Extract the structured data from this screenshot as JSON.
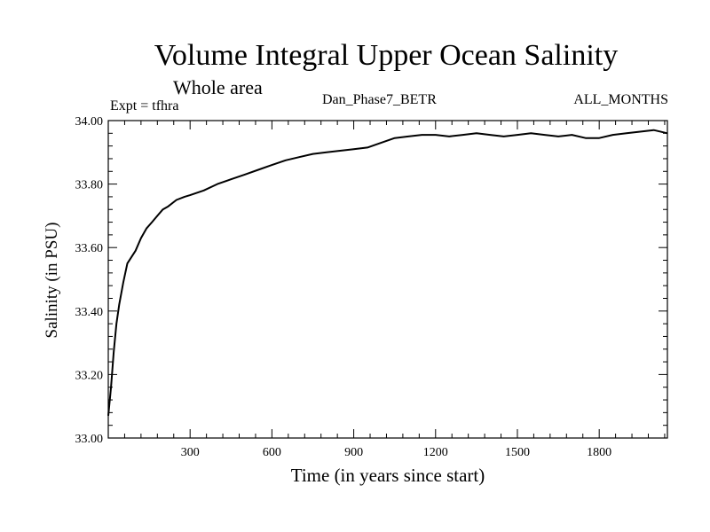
{
  "chart_data": {
    "type": "line",
    "title": "Volume Integral Upper Ocean Salinity",
    "subtitle": "Whole area",
    "left_label": "Expt = tfhra",
    "center_label": "Dan_Phase7_BETR",
    "right_label": "ALL_MONTHS",
    "xlabel": "Time (in years since start)",
    "ylabel": "Salinity (in PSU)",
    "xlim": [
      0,
      2050
    ],
    "ylim": [
      33.0,
      34.0
    ],
    "x_ticks": [
      300,
      600,
      900,
      1200,
      1500,
      1800
    ],
    "x_tick_labels": [
      "300",
      "600",
      "900",
      "1200",
      "1500",
      "1800"
    ],
    "y_ticks": [
      33.0,
      33.2,
      33.4,
      33.6,
      33.8,
      34.0
    ],
    "y_tick_labels": [
      "33.00",
      "33.20",
      "33.40",
      "33.60",
      "33.80",
      "34.00"
    ],
    "series": [
      {
        "name": "Salinity",
        "color": "#000000",
        "x": [
          0,
          10,
          20,
          30,
          40,
          55,
          70,
          85,
          100,
          120,
          140,
          160,
          180,
          200,
          220,
          250,
          280,
          300,
          350,
          400,
          450,
          500,
          550,
          600,
          650,
          700,
          750,
          800,
          850,
          900,
          950,
          1000,
          1050,
          1100,
          1150,
          1200,
          1250,
          1300,
          1350,
          1400,
          1450,
          1500,
          1550,
          1600,
          1650,
          1700,
          1750,
          1800,
          1850,
          1900,
          1950,
          2000,
          2050
        ],
        "y": [
          33.07,
          33.16,
          33.27,
          33.36,
          33.42,
          33.49,
          33.55,
          33.57,
          33.59,
          33.63,
          33.66,
          33.68,
          33.7,
          33.72,
          33.73,
          33.75,
          33.76,
          33.765,
          33.78,
          33.8,
          33.815,
          33.83,
          33.845,
          33.86,
          33.875,
          33.885,
          33.895,
          33.9,
          33.905,
          33.91,
          33.915,
          33.93,
          33.945,
          33.95,
          33.955,
          33.955,
          33.95,
          33.955,
          33.96,
          33.955,
          33.95,
          33.955,
          33.96,
          33.955,
          33.95,
          33.955,
          33.945,
          33.945,
          33.955,
          33.96,
          33.965,
          33.97,
          33.96
        ]
      }
    ]
  }
}
